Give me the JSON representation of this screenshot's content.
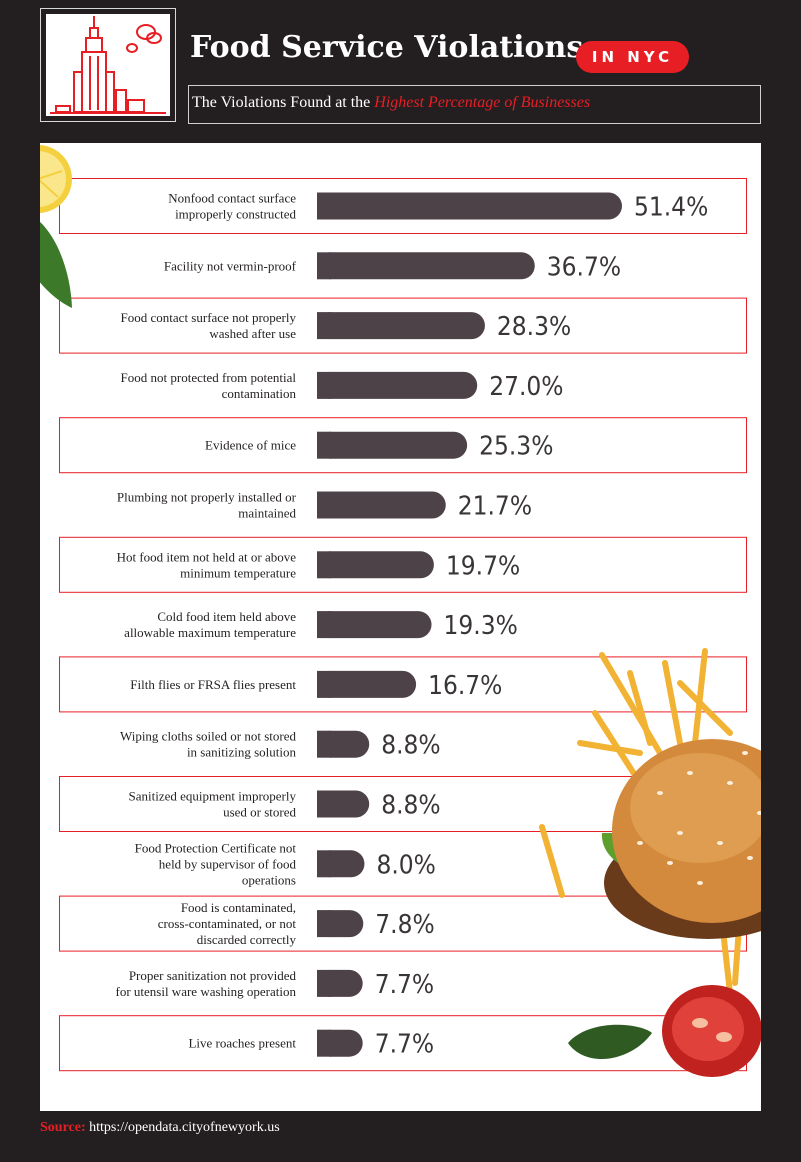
{
  "header": {
    "title": "Food Service Violations",
    "badge": "IN NYC",
    "subtitle_prefix": "The Violations Found at the ",
    "subtitle_highlight": "Highest Percentage of Businesses"
  },
  "footer": {
    "source_label": "Source:",
    "source_url": "https://opendata.cityofnewyork.us"
  },
  "colors": {
    "accent": "#e81e25",
    "bar": "#4d4247",
    "background": "#231f20",
    "panel": "#ffffff"
  },
  "icons": [
    "empire-state-building-icon",
    "cloud-icon",
    "lemon-icon",
    "leaf-icon",
    "burger-icon",
    "fries-icon",
    "tomato-icon"
  ],
  "chart_data": {
    "type": "bar",
    "orientation": "horizontal",
    "title": "Food Service Violations",
    "value_suffix": "%",
    "xlim": [
      0,
      55
    ],
    "categories": [
      [
        "Nonfood contact surface",
        "improperly constructed"
      ],
      [
        "Facility not vermin-proof"
      ],
      [
        "Food contact surface not properly",
        "washed after use"
      ],
      [
        "Food not protected from potential",
        "contamination"
      ],
      [
        "Evidence of mice"
      ],
      [
        "Plumbing not properly installed or",
        "maintained"
      ],
      [
        "Hot food item not held at or above",
        "minimum temperature"
      ],
      [
        "Cold food item held above",
        "allowable maximum temperature"
      ],
      [
        "Filth flies or FRSA flies present"
      ],
      [
        "Wiping cloths soiled or not stored",
        "in sanitizing solution"
      ],
      [
        "Sanitized equipment improperly",
        "used or stored"
      ],
      [
        "Food Protection Certificate not",
        "held by supervisor of food",
        "operations"
      ],
      [
        "Food is contaminated,",
        "cross-contaminated, or not",
        "discarded correctly"
      ],
      [
        "Proper sanitization not provided",
        "for utensil ware washing operation"
      ],
      [
        "Live roaches present"
      ]
    ],
    "values": [
      51.4,
      36.7,
      28.3,
      27.0,
      25.3,
      21.7,
      19.7,
      19.3,
      16.7,
      8.8,
      8.8,
      8.0,
      7.8,
      7.7,
      7.7
    ],
    "labels": [
      "51.4%",
      "36.7%",
      "28.3%",
      "27.0%",
      "25.3%",
      "21.7%",
      "19.7%",
      "19.3%",
      "16.7%",
      "8.8%",
      "8.8%",
      "8.0%",
      "7.8%",
      "7.7%",
      "7.7%"
    ],
    "grid": false,
    "legend": "none"
  }
}
